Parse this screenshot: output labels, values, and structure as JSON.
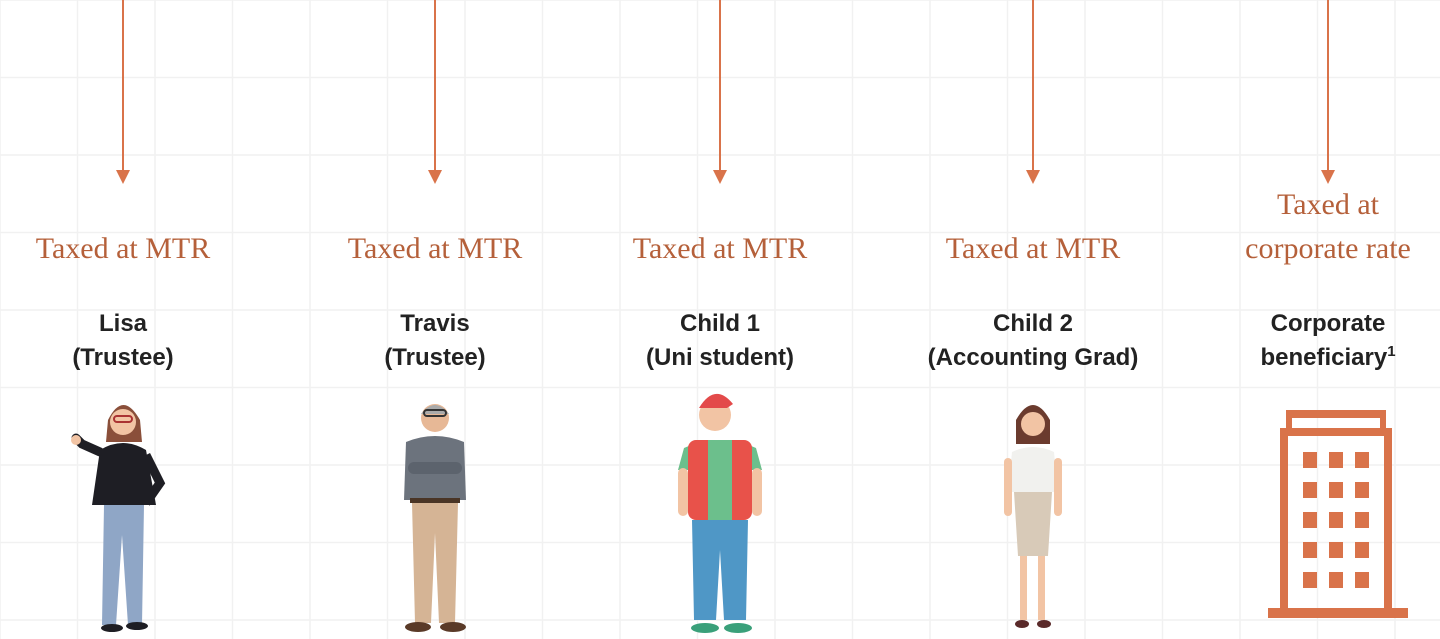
{
  "columns": [
    {
      "tax": [
        "Taxed at MTR"
      ],
      "name": [
        "Lisa",
        "(Trustee)"
      ]
    },
    {
      "tax": [
        "Taxed at MTR"
      ],
      "name": [
        "Travis",
        "(Trustee)"
      ]
    },
    {
      "tax": [
        "Taxed at MTR"
      ],
      "name": [
        "Child 1",
        "(Uni student)"
      ]
    },
    {
      "tax": [
        "Taxed at MTR"
      ],
      "name": [
        "Child 2",
        "(Accounting Grad)"
      ]
    },
    {
      "tax": [
        "Taxed at",
        "corporate rate"
      ],
      "name": [
        "Corporate",
        "beneficiary"
      ],
      "footnote": "1"
    }
  ]
}
